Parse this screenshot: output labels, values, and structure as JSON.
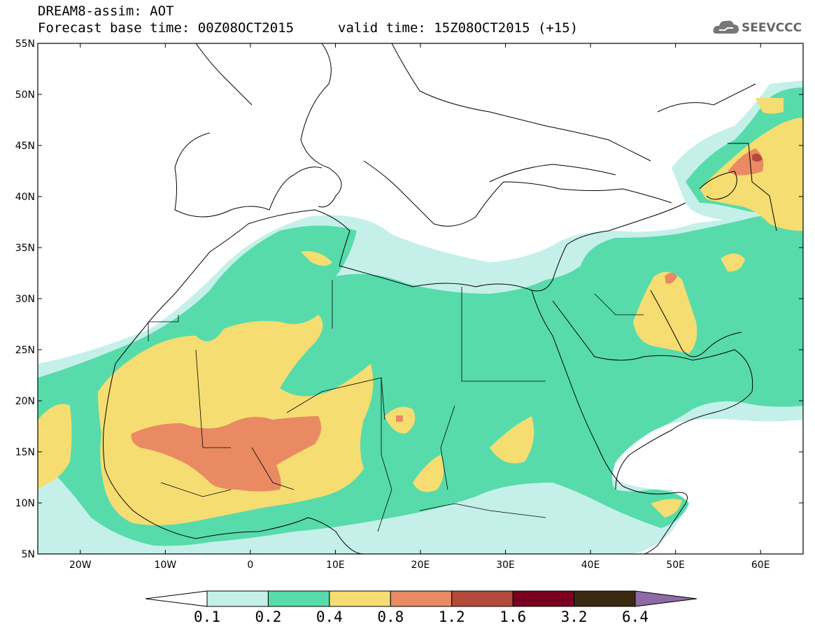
{
  "header": {
    "model_title": "DREAM8-assim: AOT",
    "base_time": "Forecast base time: 00Z08OCT2015",
    "valid_time": "valid time: 15Z08OCT2015 (+15)",
    "logo_text": "SEEVCCC"
  },
  "map": {
    "lon_range": [
      -25,
      65
    ],
    "lat_range": [
      5,
      55
    ],
    "lon_ticks": [
      "20W",
      "10W",
      "0",
      "10E",
      "20E",
      "30E",
      "40E",
      "50E",
      "60E"
    ],
    "lat_ticks": [
      "55N",
      "50N",
      "45N",
      "40N",
      "35N",
      "30N",
      "25N",
      "20N",
      "15N",
      "10N",
      "5N"
    ]
  },
  "colorbar": {
    "labels": [
      "0.1",
      "0.2",
      "0.4",
      "0.8",
      "1.2",
      "1.6",
      "3.2",
      "6.4"
    ],
    "colors": [
      "#ffffff",
      "#c5f0ea",
      "#57dbab",
      "#f5dd72",
      "#e98a62",
      "#b34a3a",
      "#7a0020",
      "#3b2a12",
      "#8e6aa6"
    ]
  },
  "colors": {
    "level1": "#c5f0ea",
    "level2": "#57dbab",
    "level3": "#f5dd72",
    "level4": "#e98a62"
  }
}
